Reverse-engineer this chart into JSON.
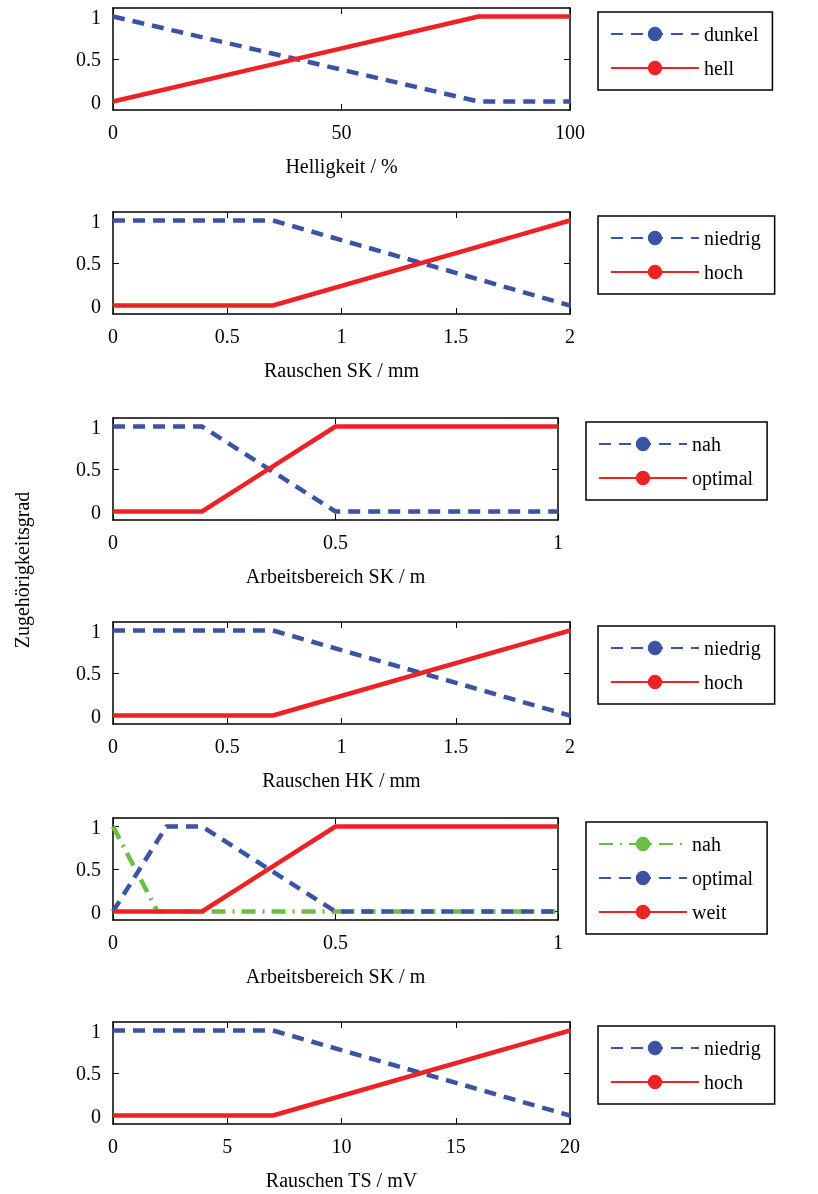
{
  "chart_data": [
    {
      "type": "line",
      "xlabel": "Helligkeit / %",
      "xlim": [
        0,
        100
      ],
      "xticks": [
        0,
        50,
        100
      ],
      "ylim": [
        -0.1,
        1.1
      ],
      "yticks": [
        0,
        0.5,
        1
      ],
      "legend": "right",
      "grid": false,
      "marker": "none",
      "series": [
        {
          "name": "dunkel",
          "color": "#3a53a4",
          "line_style": "dashed",
          "x": [
            0,
            80,
            100
          ],
          "values": [
            1,
            0,
            0
          ]
        },
        {
          "name": "hell",
          "color": "#ed2224",
          "line_style": "solid",
          "x": [
            0,
            80,
            100
          ],
          "values": [
            0,
            1,
            1
          ]
        }
      ]
    },
    {
      "type": "line",
      "xlabel": "Rauschen SK / mm",
      "xlim": [
        0,
        2
      ],
      "xticks": [
        0,
        0.5,
        1,
        1.5,
        2
      ],
      "ylim": [
        -0.1,
        1.1
      ],
      "yticks": [
        0,
        0.5,
        1
      ],
      "legend": "right",
      "grid": false,
      "marker": "none",
      "series": [
        {
          "name": "niedrig",
          "color": "#3a53a4",
          "line_style": "dashed",
          "x": [
            0,
            0.7,
            2
          ],
          "values": [
            1,
            1,
            0
          ]
        },
        {
          "name": "hoch",
          "color": "#ed2224",
          "line_style": "solid",
          "x": [
            0,
            0.7,
            2
          ],
          "values": [
            0,
            0,
            1
          ]
        }
      ]
    },
    {
      "type": "line",
      "xlabel": "Arbeitsbereich SK / m",
      "ylabel": "Zugehörigkeitsgrad",
      "xlim": [
        0,
        1
      ],
      "xticks": [
        0,
        0.5,
        1
      ],
      "ylim": [
        -0.1,
        1.1
      ],
      "yticks": [
        0,
        0.5,
        1
      ],
      "legend": "right",
      "grid": false,
      "marker": "none",
      "series": [
        {
          "name": "nah",
          "color": "#3a53a4",
          "line_style": "dashed",
          "x": [
            0,
            0.2,
            0.5,
            1
          ],
          "values": [
            1,
            1,
            0,
            0
          ]
        },
        {
          "name": "optimal",
          "color": "#ed2224",
          "line_style": "solid",
          "x": [
            0,
            0.2,
            0.5,
            1
          ],
          "values": [
            0,
            0,
            1,
            1
          ]
        }
      ]
    },
    {
      "type": "line",
      "xlabel": "Rauschen HK / mm",
      "xlim": [
        0,
        2
      ],
      "xticks": [
        0,
        0.5,
        1,
        1.5,
        2
      ],
      "ylim": [
        -0.1,
        1.1
      ],
      "yticks": [
        0,
        0.5,
        1
      ],
      "legend": "right",
      "grid": false,
      "marker": "none",
      "series": [
        {
          "name": "niedrig",
          "color": "#3a53a4",
          "line_style": "dashed",
          "x": [
            0,
            0.7,
            2
          ],
          "values": [
            1,
            1,
            0
          ]
        },
        {
          "name": "hoch",
          "color": "#ed2224",
          "line_style": "solid",
          "x": [
            0,
            0.7,
            2
          ],
          "values": [
            0,
            0,
            1
          ]
        }
      ]
    },
    {
      "type": "line",
      "xlabel": "Arbeitsbereich SK / m",
      "xlim": [
        0,
        1
      ],
      "xticks": [
        0,
        0.5,
        1
      ],
      "ylim": [
        -0.1,
        1.1
      ],
      "yticks": [
        0,
        0.5,
        1
      ],
      "legend": "right",
      "grid": false,
      "marker": "none",
      "series": [
        {
          "name": "nah",
          "color": "#6abd45",
          "line_style": "dashdot",
          "x": [
            0,
            0.1,
            1
          ],
          "values": [
            1,
            0,
            0
          ]
        },
        {
          "name": "optimal",
          "color": "#3a53a4",
          "line_style": "dashed",
          "x": [
            0,
            0.12,
            0.2,
            0.5,
            1
          ],
          "values": [
            0,
            1,
            1,
            0,
            0
          ]
        },
        {
          "name": "weit",
          "color": "#ed2224",
          "line_style": "solid",
          "x": [
            0,
            0.2,
            0.5,
            1
          ],
          "values": [
            0,
            0,
            1,
            1
          ]
        }
      ]
    },
    {
      "type": "line",
      "xlabel": "Rauschen TS / mV",
      "xlim": [
        0,
        20
      ],
      "xticks": [
        0,
        5,
        10,
        15,
        20
      ],
      "ylim": [
        -0.1,
        1.1
      ],
      "yticks": [
        0,
        0.5,
        1
      ],
      "legend": "right",
      "grid": false,
      "marker": "none",
      "series": [
        {
          "name": "niedrig",
          "color": "#3a53a4",
          "line_style": "dashed",
          "x": [
            0,
            7,
            20
          ],
          "values": [
            1,
            1,
            0
          ]
        },
        {
          "name": "hoch",
          "color": "#ed2224",
          "line_style": "solid",
          "x": [
            0,
            7,
            20
          ],
          "values": [
            0,
            0,
            1
          ]
        }
      ]
    }
  ]
}
